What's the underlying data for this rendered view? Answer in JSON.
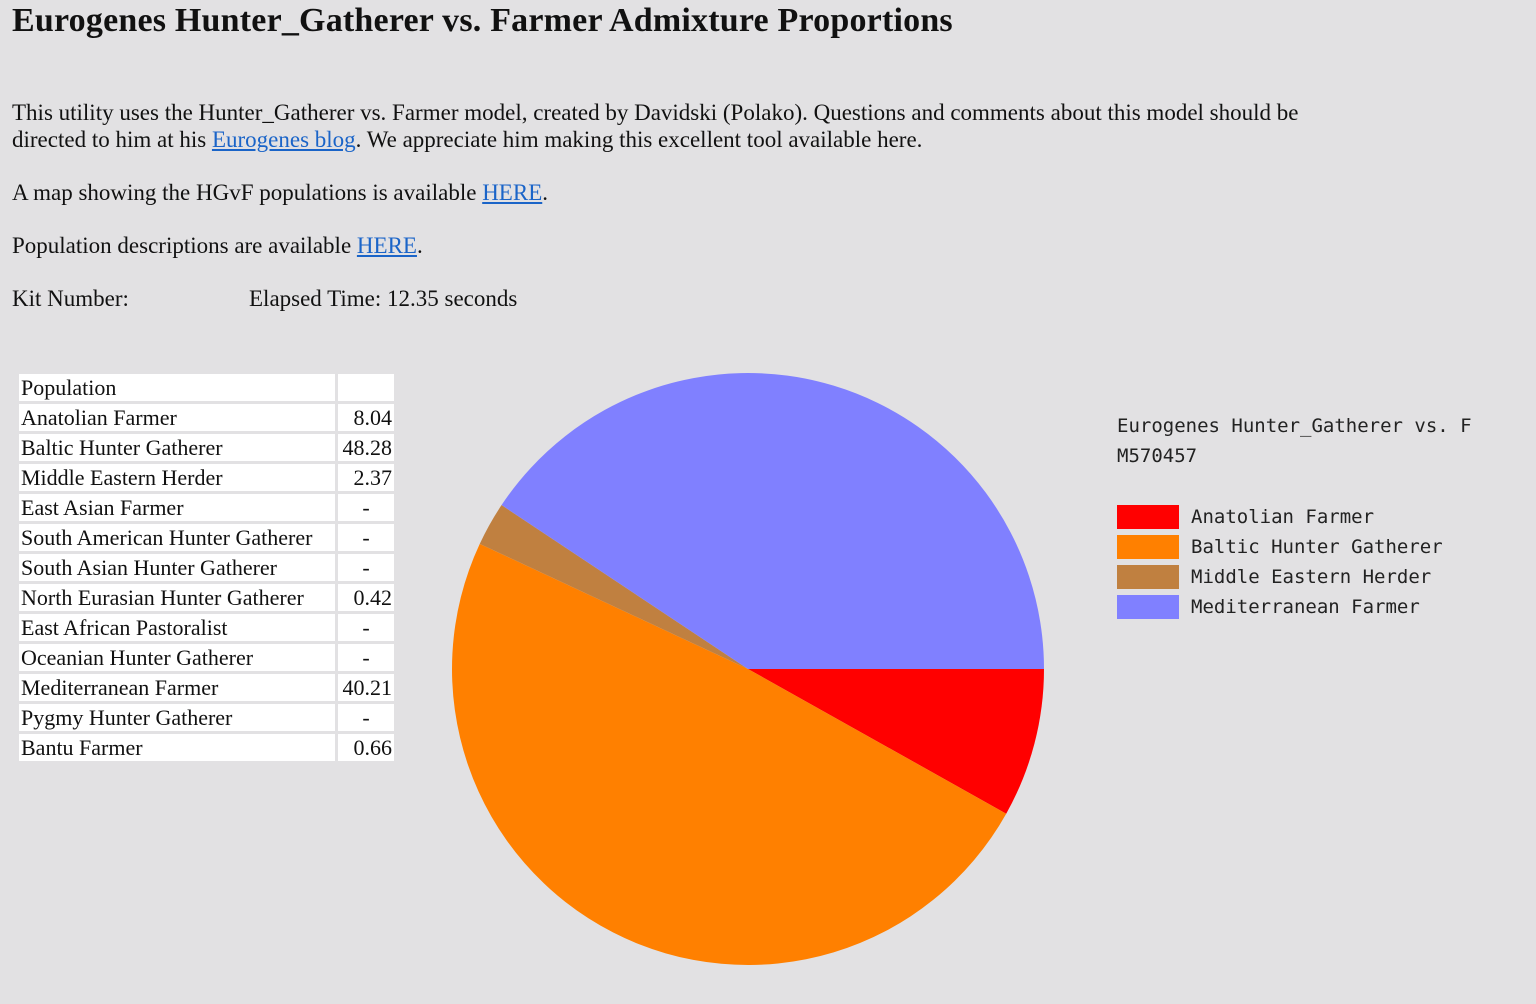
{
  "page": {
    "title": "Eurogenes Hunter_Gatherer vs. Farmer Admixture Proportions",
    "intro_before": "This utility uses the Hunter_Gatherer vs. Farmer model, created by Davidski (Polako). Questions and comments about this model should be directed to him at his ",
    "intro_link": "Eurogenes blog",
    "intro_after": ". We appreciate him making this excellent tool available here.",
    "map_before": "A map showing the HGvF populations is available ",
    "map_link": "HERE",
    "map_after": ".",
    "desc_before": "Population descriptions are available ",
    "desc_link": "HERE",
    "desc_after": ".",
    "kit_label": "Kit Number:",
    "elapsed": "Elapsed Time: 12.35 seconds"
  },
  "table": {
    "header": "Population",
    "rows": [
      {
        "name": "Anatolian Farmer",
        "value": "8.04"
      },
      {
        "name": "Baltic Hunter Gatherer",
        "value": "48.28"
      },
      {
        "name": "Middle Eastern Herder",
        "value": "2.37"
      },
      {
        "name": "East Asian Farmer",
        "value": "-"
      },
      {
        "name": "South American Hunter Gatherer",
        "value": "-"
      },
      {
        "name": "South Asian Hunter Gatherer",
        "value": "-"
      },
      {
        "name": "North Eurasian Hunter Gatherer",
        "value": "0.42"
      },
      {
        "name": "East African Pastoralist",
        "value": "-"
      },
      {
        "name": "Oceanian Hunter Gatherer",
        "value": "-"
      },
      {
        "name": "Mediterranean Farmer",
        "value": "40.21"
      },
      {
        "name": "Pygmy Hunter Gatherer",
        "value": "-"
      },
      {
        "name": "Bantu Farmer",
        "value": "0.66"
      }
    ]
  },
  "chart_data": {
    "type": "pie",
    "title": "Eurogenes Hunter_Gatherer vs. F",
    "subtitle": "M570457",
    "legend_position": "right",
    "slices": [
      {
        "label": "Anatolian Farmer",
        "value": 8.04,
        "color": "#ff0000"
      },
      {
        "label": "Baltic Hunter Gatherer",
        "value": 48.28,
        "color": "#ff8000"
      },
      {
        "label": "Middle Eastern Herder",
        "value": 2.37,
        "color": "#c08040"
      },
      {
        "label": "Mediterranean Farmer",
        "value": 40.21,
        "color": "#8080ff"
      }
    ]
  }
}
